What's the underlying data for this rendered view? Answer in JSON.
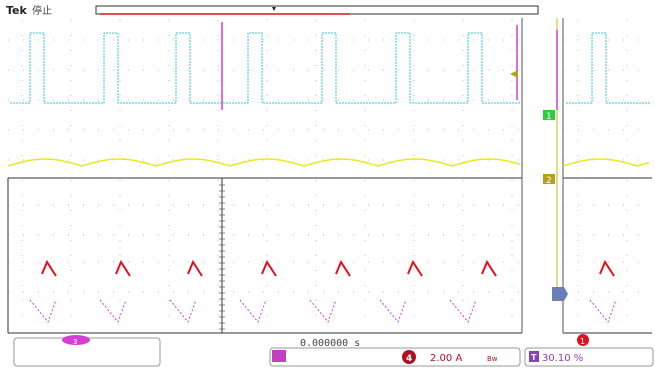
{
  "header": {
    "brand": "Tek",
    "run_state": "停止"
  },
  "markers": {
    "ch1": "1",
    "ch2": "2",
    "ch4": "4",
    "ch3": "3"
  },
  "bottom_bar": {
    "readout_center": "0.000000 s",
    "ch4_scale": "2.00 A",
    "bw_label": "Bw",
    "trigger_badge": "T",
    "trigger_position": "30.10 %",
    "ch3_badge": "3",
    "ch1_badge": "1",
    "ch2_badge": "2",
    "ch4_badge": "4"
  },
  "colors": {
    "ch1": "#35c9e0",
    "ch2": "#e8e820",
    "ch3": "#d63cd6",
    "ch4": "#e01020",
    "trigger": "#8a3fbf",
    "ch1_marker": "#2ecc40",
    "ch2_marker": "#b5a020"
  }
}
